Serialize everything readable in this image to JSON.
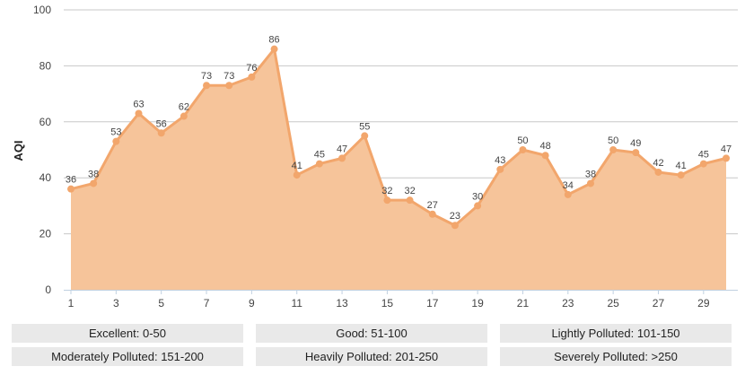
{
  "chart_data": {
    "type": "area",
    "title": "",
    "xlabel": "",
    "ylabel": "AQI",
    "ylim": [
      0,
      100
    ],
    "yticks": [
      0,
      20,
      40,
      60,
      80,
      100
    ],
    "xlim": [
      1,
      30
    ],
    "xticks": [
      1,
      3,
      5,
      7,
      9,
      11,
      13,
      15,
      17,
      19,
      21,
      23,
      25,
      27,
      29
    ],
    "x": [
      1,
      2,
      3,
      4,
      5,
      6,
      7,
      8,
      9,
      10,
      11,
      12,
      13,
      14,
      15,
      16,
      17,
      18,
      19,
      20,
      21,
      22,
      23,
      24,
      25,
      26,
      27,
      28,
      29,
      30
    ],
    "series": [
      {
        "values": [
          36,
          38,
          53,
          63,
          56,
          62,
          73,
          73,
          76,
          86,
          41,
          45,
          47,
          55,
          32,
          32,
          27,
          23,
          30,
          43,
          50,
          48,
          34,
          38,
          50,
          49,
          42,
          41,
          45,
          47
        ]
      }
    ],
    "grid": true,
    "colors": {
      "fill": "#f6c49a",
      "line": "#f2a66c",
      "grid": "#c8c8c8",
      "axis": "#c0d0e0",
      "label": "#444444"
    }
  },
  "legend": {
    "items": [
      {
        "label": "Excellent: 0-50"
      },
      {
        "label": "Good: 51-100"
      },
      {
        "label": "Lightly Polluted: 101-150"
      },
      {
        "label": "Moderately Polluted: 151-200"
      },
      {
        "label": "Heavily Polluted: 201-250"
      },
      {
        "label": "Severely Polluted: >250"
      }
    ]
  }
}
